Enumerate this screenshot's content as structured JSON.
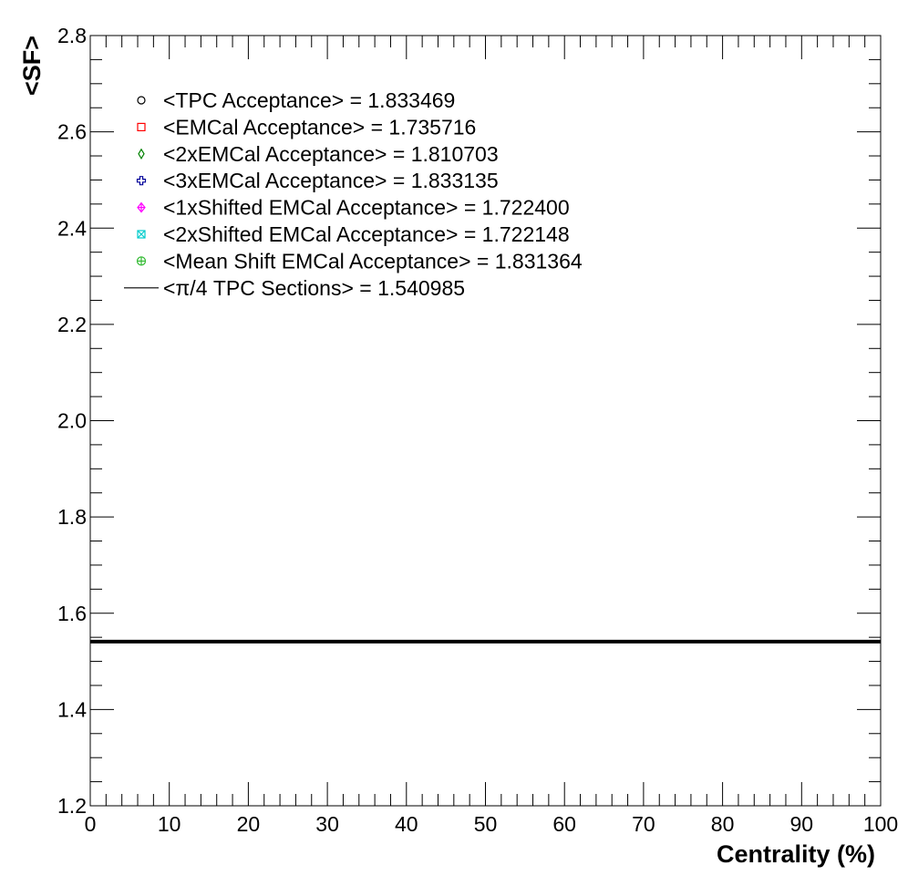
{
  "chart_data": {
    "type": "line",
    "title": "",
    "xlabel": "Centrality (%)",
    "ylabel": "<SF>",
    "xlim": [
      0,
      100
    ],
    "ylim": [
      1.2,
      2.8
    ],
    "x_ticks": [
      0,
      10,
      20,
      30,
      40,
      50,
      60,
      70,
      80,
      90,
      100
    ],
    "x_tick_labels": [
      "0",
      "10",
      "20",
      "30",
      "40",
      "50",
      "60",
      "70",
      "80",
      "90",
      "100"
    ],
    "y_ticks": [
      1.2,
      1.4,
      1.6,
      1.8,
      2.0,
      2.2,
      2.4,
      2.6,
      2.8
    ],
    "y_tick_labels": [
      "1.2",
      "1.4",
      "1.6",
      "1.8",
      "2.0",
      "2.2",
      "2.4",
      "2.6",
      "2.8"
    ],
    "grid": false,
    "legend_position": "top-left",
    "series": [
      {
        "name": "<TPC Acceptance> = 1.833469",
        "marker": "open-circle",
        "color": "#000000",
        "x": [],
        "y": []
      },
      {
        "name": "<EMCal Acceptance> = 1.735716",
        "marker": "open-square",
        "color": "#ff0000",
        "x": [],
        "y": []
      },
      {
        "name": "<2xEMCal Acceptance> = 1.810703",
        "marker": "open-diamond",
        "color": "#008000",
        "x": [],
        "y": []
      },
      {
        "name": "<3xEMCal Acceptance> = 1.833135",
        "marker": "open-cross",
        "color": "#000099",
        "x": [],
        "y": []
      },
      {
        "name": "<1xShifted EMCal Acceptance> = 1.722400",
        "marker": "cross-in-diamond",
        "color": "#ff00ff",
        "x": [],
        "y": []
      },
      {
        "name": "<2xShifted EMCal Acceptance> = 1.722148",
        "marker": "x-in-square",
        "color": "#00cccc",
        "x": [],
        "y": []
      },
      {
        "name": "<Mean Shift EMCal Acceptance> = 1.831364",
        "marker": "plus-in-circle",
        "color": "#33bb33",
        "x": [],
        "y": []
      },
      {
        "name": "<π/4 TPC Sections> = 1.540985",
        "marker": "line",
        "color": "#000000",
        "x": [
          0,
          100
        ],
        "y": [
          1.540985,
          1.540985
        ]
      }
    ]
  }
}
